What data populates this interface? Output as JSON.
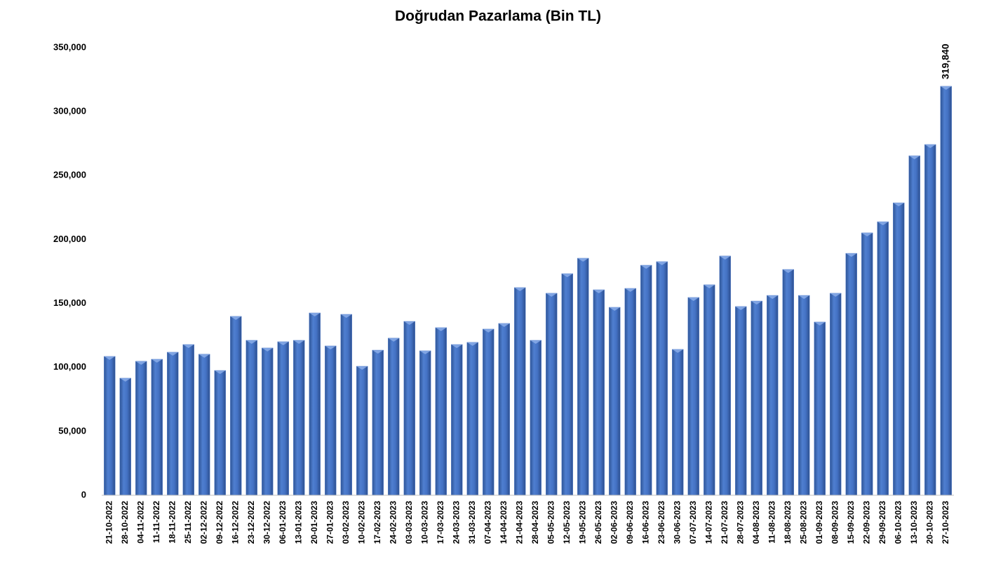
{
  "chart_data": {
    "type": "bar",
    "title": "Doğrudan Pazarlama (Bin TL)",
    "categories": [
      "21-10-2022",
      "28-10-2022",
      "04-11-2022",
      "11-11-2022",
      "18-11-2022",
      "25-11-2022",
      "02-12-2022",
      "09-12-2022",
      "16-12-2022",
      "23-12-2022",
      "30-12-2022",
      "06-01-2023",
      "13-01-2023",
      "20-01-2023",
      "27-01-2023",
      "03-02-2023",
      "10-02-2023",
      "17-02-2023",
      "24-02-2023",
      "03-03-2023",
      "10-03-2023",
      "17-03-2023",
      "24-03-2023",
      "31-03-2023",
      "07-04-2023",
      "14-04-2023",
      "21-04-2023",
      "28-04-2023",
      "05-05-2023",
      "12-05-2023",
      "19-05-2023",
      "26-05-2023",
      "02-06-2023",
      "09-06-2023",
      "16-06-2023",
      "23-06-2023",
      "30-06-2023",
      "07-07-2023",
      "14-07-2023",
      "21-07-2023",
      "28-07-2023",
      "04-08-2023",
      "11-08-2023",
      "18-08-2023",
      "25-08-2023",
      "01-09-2023",
      "08-09-2023",
      "15-09-2023",
      "22-09-2023",
      "29-09-2023",
      "06-10-2023",
      "13-10-2023",
      "20-10-2023",
      "27-10-2023"
    ],
    "values": [
      108600,
      91600,
      104800,
      106400,
      111900,
      117900,
      110300,
      97600,
      139900,
      121200,
      115200,
      120100,
      121200,
      142600,
      116800,
      141500,
      100900,
      113500,
      122900,
      136000,
      113000,
      131100,
      117900,
      119600,
      130000,
      134400,
      162400,
      121200,
      158000,
      173300,
      185400,
      160700,
      147000,
      161800,
      179900,
      182700,
      114100,
      154700,
      164600,
      187100,
      147600,
      151900,
      156300,
      176600,
      156300,
      135500,
      158000,
      189200,
      205200,
      213900,
      228700,
      265500,
      274300,
      319840
    ],
    "value_labels": [
      null,
      null,
      null,
      null,
      null,
      null,
      null,
      null,
      null,
      null,
      null,
      null,
      null,
      null,
      null,
      null,
      null,
      null,
      null,
      null,
      null,
      null,
      null,
      null,
      null,
      null,
      null,
      null,
      null,
      null,
      null,
      null,
      null,
      null,
      null,
      null,
      null,
      null,
      null,
      null,
      null,
      null,
      null,
      null,
      null,
      null,
      null,
      null,
      null,
      null,
      null,
      null,
      null,
      "319,840"
    ],
    "color": "#4472c4",
    "ylim": [
      0,
      350000
    ],
    "yticks": [
      0,
      {
        "value": 50000,
        "label": "50,000"
      },
      {
        "value": 100000,
        "label": "100,000"
      },
      {
        "value": 150000,
        "label": "150,000"
      },
      {
        "value": 200000,
        "label": "200,000"
      },
      {
        "value": 250000,
        "label": "250,000"
      },
      {
        "value": 300000,
        "label": "300,000"
      },
      {
        "value": 350000,
        "label": "350,000"
      }
    ],
    "grid": false
  }
}
